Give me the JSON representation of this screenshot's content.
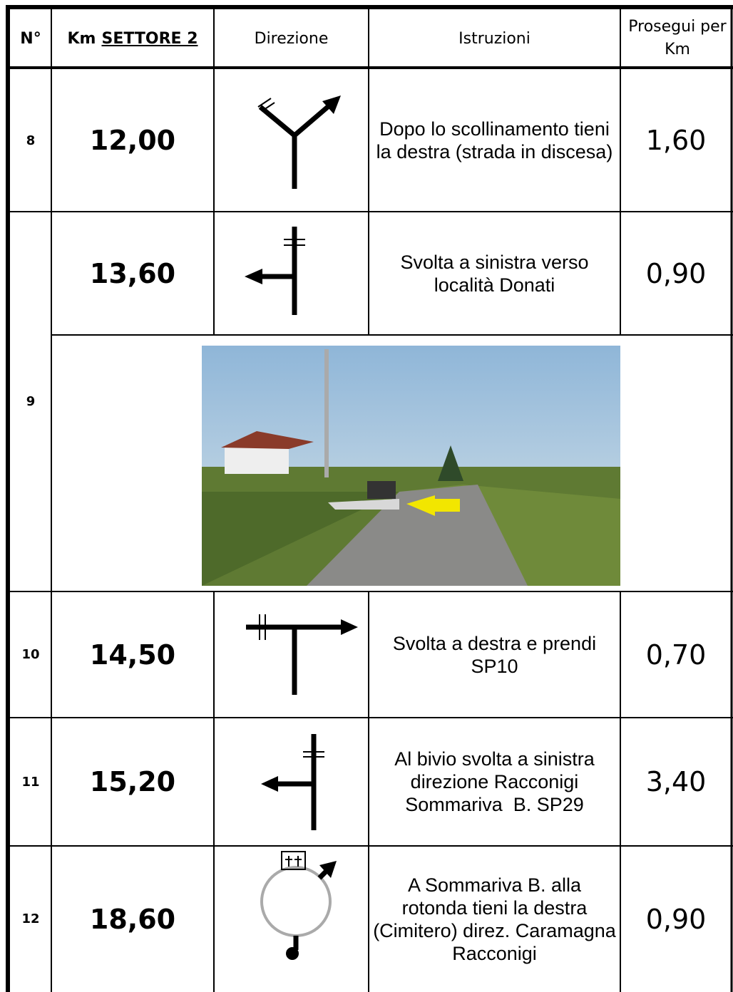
{
  "table": {
    "headers": {
      "number": "N°",
      "km": "Km",
      "sector": "SETTORE 2",
      "direction": "Direzione",
      "instructions": "Istruzioni",
      "continue": "Prosegui per Km"
    },
    "rows": [
      {
        "number": "8",
        "km": "12,00",
        "instructions": "Dopo lo scollinamento tieni la destra (strada in discesa)",
        "continue": "1,60"
      },
      {
        "number": "9",
        "km": "13,60",
        "instructions": "Svolta a sinistra verso località Donati",
        "continue": "0,90"
      },
      {
        "number": "10",
        "km": "14,50",
        "instructions": "Svolta a destra e prendi SP10",
        "continue": "0,70"
      },
      {
        "number": "11",
        "km": "15,20",
        "instructions": "Al bivio svolta a sinistra direzione Racconigi Sommariva  B. SP29",
        "continue": "3,40"
      },
      {
        "number": "12",
        "km": "18,60",
        "instructions": "A Sommariva B. alla rotonda tieni la destra (Cimitero) direz. Caramagna Racconigi",
        "continue": "0,90"
      }
    ]
  }
}
